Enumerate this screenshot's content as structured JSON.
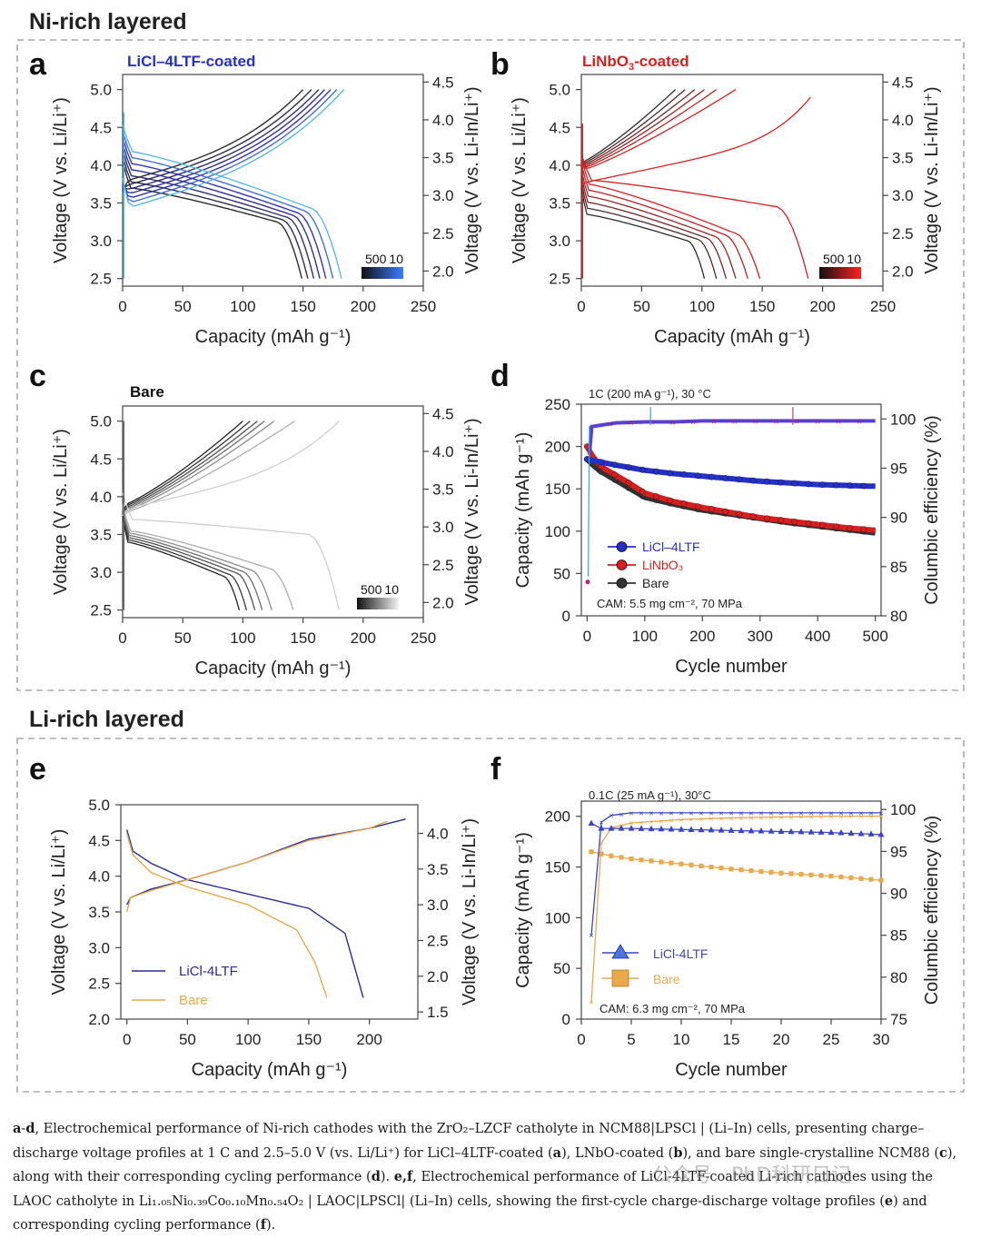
{
  "sections": [
    {
      "title": "Ni-rich layered"
    },
    {
      "title": "Li-rich layered"
    }
  ],
  "colors": {
    "licl": "#2430c8",
    "licl_light": "#58b8e6",
    "linbo": "#d81f1f",
    "bare": "#333333",
    "orange": "#e8a84c",
    "navy": "#2a2a9a"
  },
  "panels": {
    "a": {
      "letter": "a",
      "label": "LiCl–4LTF-coated",
      "colorbar": {
        "left": "500",
        "right": "10"
      }
    },
    "b": {
      "letter": "b",
      "label_main": "LiNbO",
      "label_sub": "3",
      "label_tail": "-coated",
      "colorbar": {
        "left": "500",
        "right": "10"
      }
    },
    "c": {
      "letter": "c",
      "label": "Bare",
      "colorbar": {
        "left": "500",
        "right": "10"
      }
    },
    "d": {
      "letter": "d",
      "condition": "1C (200 mA g⁻¹), 30 °C",
      "cam": "CAM: 5.5 mg cm⁻², 70 MPa",
      "legend": [
        "LiCl–4LTF",
        "LiNbO₃",
        "Bare"
      ]
    },
    "e": {
      "letter": "e",
      "legend": [
        "LiCl-4LTF",
        "Bare"
      ]
    },
    "f": {
      "letter": "f",
      "condition": "0.1C (25 mA g⁻¹), 30°C",
      "cam": "CAM: 6.3 mg cm⁻², 70 MPa",
      "legend": [
        "LiCl-4LTF",
        "Bare"
      ]
    }
  },
  "axes": {
    "voltage_li": "Voltage (V vs. Li/Li⁺)",
    "voltage_liin": "Voltage (V vs. Li-In/Li⁺)",
    "capacity_x": "Capacity (mAh g⁻¹)",
    "capacity_y": "Capacity (mAh g⁻¹)",
    "cycle": "Cycle number",
    "ce": "Columbic efficiency (%)"
  },
  "chart_data": [
    {
      "id": "a",
      "type": "line",
      "title": "LiCl–4LTF-coated",
      "xlabel": "Capacity (mAh g⁻¹)",
      "ylabel": "Voltage (V vs. Li/Li⁺)",
      "y2label": "Voltage (V vs. Li-In/Li⁺)",
      "xlim": [
        0,
        250
      ],
      "ylim": [
        2.4,
        5.2
      ],
      "y2lim": [
        1.8,
        4.6
      ],
      "xticks": [
        0,
        50,
        100,
        150,
        200,
        250
      ],
      "yticks": [
        2.5,
        3.0,
        3.5,
        4.0,
        4.5,
        5.0
      ],
      "y2ticks": [
        2.0,
        2.5,
        3.0,
        3.5,
        4.0,
        4.5
      ],
      "curve_count": 7,
      "charge_end_capacity": [
        150,
        157,
        163,
        168,
        173,
        178,
        184
      ],
      "discharge_end_capacity": [
        149,
        154,
        159,
        164,
        169,
        175,
        182
      ],
      "colorbar": [
        "500",
        "10"
      ]
    },
    {
      "id": "b",
      "type": "line",
      "title": "LiNbO₃-coated",
      "xlabel": "Capacity (mAh g⁻¹)",
      "ylabel": "Voltage (V vs. Li/Li⁺)",
      "y2label": "Voltage (V vs. Li-In/Li⁺)",
      "xlim": [
        0,
        250
      ],
      "ylim": [
        2.4,
        5.2
      ],
      "y2lim": [
        1.8,
        4.6
      ],
      "xticks": [
        0,
        50,
        100,
        150,
        200,
        250
      ],
      "yticks": [
        2.5,
        3.0,
        3.5,
        4.0,
        4.5,
        5.0
      ],
      "y2ticks": [
        2.0,
        2.5,
        3.0,
        3.5,
        4.0,
        4.5
      ],
      "curve_count": 7,
      "charge_end_capacity": [
        78,
        86,
        94,
        102,
        112,
        128,
        190
      ],
      "discharge_end_capacity": [
        102,
        112,
        120,
        128,
        138,
        148,
        188
      ],
      "colorbar": [
        "500",
        "10"
      ]
    },
    {
      "id": "c",
      "type": "line",
      "title": "Bare",
      "xlabel": "Capacity (mAh g⁻¹)",
      "ylabel": "Voltage (V vs. Li/Li⁺)",
      "y2label": "Voltage (V vs. Li-In/Li⁺)",
      "xlim": [
        0,
        250
      ],
      "ylim": [
        2.4,
        5.2
      ],
      "y2lim": [
        1.8,
        4.6
      ],
      "xticks": [
        0,
        50,
        100,
        150,
        200,
        250
      ],
      "yticks": [
        2.5,
        3.0,
        3.5,
        4.0,
        4.5,
        5.0
      ],
      "y2ticks": [
        2.0,
        2.5,
        3.0,
        3.5,
        4.0,
        4.5
      ],
      "curve_count": 7,
      "charge_end_capacity": [
        100,
        106,
        112,
        118,
        126,
        143,
        180
      ],
      "discharge_end_capacity": [
        97,
        103,
        110,
        116,
        124,
        142,
        180
      ],
      "colorbar": [
        "500",
        "10"
      ]
    },
    {
      "id": "d",
      "type": "scatter",
      "xlabel": "Cycle number",
      "ylabel": "Capacity (mAh g⁻¹)",
      "y2label": "Columbic efficiency (%)",
      "xlim": [
        -10,
        510
      ],
      "ylim": [
        0,
        250
      ],
      "y2lim": [
        80,
        101.5
      ],
      "xticks": [
        0,
        100,
        200,
        300,
        400,
        500
      ],
      "yticks": [
        0,
        50,
        100,
        150,
        200,
        250
      ],
      "y2ticks": [
        80,
        85,
        90,
        95,
        100
      ],
      "series": [
        {
          "name": "LiCl–4LTF",
          "x": [
            0,
            50,
            100,
            150,
            200,
            250,
            300,
            350,
            400,
            450,
            500
          ],
          "y": [
            185,
            178,
            172,
            168,
            165,
            162,
            159,
            157,
            155,
            154,
            153
          ]
        },
        {
          "name": "LiNbO₃",
          "x": [
            0,
            10,
            25,
            50,
            75,
            100,
            150,
            200,
            250,
            300,
            350,
            400,
            450,
            500
          ],
          "y": [
            200,
            188,
            176,
            166,
            156,
            145,
            135,
            128,
            122,
            116,
            112,
            108,
            104,
            101
          ]
        },
        {
          "name": "Bare",
          "x": [
            0,
            10,
            25,
            50,
            75,
            100,
            150,
            200,
            250,
            300,
            350,
            400,
            450,
            500
          ],
          "y": [
            185,
            178,
            170,
            160,
            150,
            140,
            132,
            125,
            120,
            115,
            110,
            106,
            102,
            98
          ]
        },
        {
          "name": "CE",
          "x": [
            0,
            5,
            50,
            100,
            150,
            200,
            250,
            300,
            350,
            400,
            450,
            500
          ],
          "y": [
            85,
            99.2,
            99.6,
            99.7,
            99.7,
            99.8,
            99.8,
            99.8,
            99.8,
            99.8,
            99.8,
            99.8
          ]
        }
      ]
    },
    {
      "id": "e",
      "type": "line",
      "xlabel": "Capacity (mAh g⁻¹)",
      "ylabel": "Voltage (V vs. Li/Li⁺)",
      "y2label": "Voltage (V vs. Li-In/Li⁺)",
      "xlim": [
        -5,
        240
      ],
      "ylim": [
        2.0,
        5.0
      ],
      "y2lim": [
        1.4,
        4.4
      ],
      "xticks": [
        0,
        50,
        100,
        150,
        200
      ],
      "yticks": [
        2.0,
        2.5,
        3.0,
        3.5,
        4.0,
        4.5,
        5.0
      ],
      "y2ticks": [
        1.5,
        2.0,
        2.5,
        3.0,
        3.5,
        4.0
      ],
      "series": [
        {
          "name": "LiCl-4LTF charge",
          "x": [
            0,
            3,
            20,
            50,
            100,
            150,
            200,
            230
          ],
          "y": [
            3.6,
            3.7,
            3.82,
            3.95,
            4.2,
            4.52,
            4.67,
            4.8
          ]
        },
        {
          "name": "LiCl-4LTF discharge",
          "x": [
            0,
            5,
            20,
            50,
            100,
            150,
            180,
            195
          ],
          "y": [
            4.65,
            4.35,
            4.18,
            3.95,
            3.75,
            3.55,
            3.2,
            2.3
          ]
        },
        {
          "name": "Bare charge",
          "x": [
            0,
            3,
            20,
            50,
            100,
            150,
            200,
            215
          ],
          "y": [
            3.5,
            3.7,
            3.8,
            3.95,
            4.2,
            4.5,
            4.67,
            4.77
          ]
        },
        {
          "name": "Bare discharge",
          "x": [
            0,
            5,
            20,
            50,
            100,
            140,
            155,
            165
          ],
          "y": [
            4.6,
            4.3,
            4.05,
            3.85,
            3.6,
            3.25,
            2.8,
            2.3
          ]
        }
      ]
    },
    {
      "id": "f",
      "type": "scatter",
      "xlabel": "Cycle number",
      "ylabel": "Capacity (mAh g⁻¹)",
      "y2label": "Columbic efficiency (%)",
      "xlim": [
        0,
        30
      ],
      "ylim": [
        0,
        215
      ],
      "y2lim": [
        75,
        101
      ],
      "xticks": [
        0,
        5,
        10,
        15,
        20,
        25,
        30
      ],
      "yticks": [
        0,
        50,
        100,
        150,
        200
      ],
      "y2ticks": [
        75,
        80,
        85,
        90,
        95,
        100
      ],
      "series": [
        {
          "name": "LiCl-4LTF",
          "x": [
            1,
            2,
            3,
            5,
            10,
            15,
            20,
            25,
            30
          ],
          "y": [
            193,
            188,
            188,
            188,
            187,
            186,
            185,
            184,
            182
          ]
        },
        {
          "name": "Bare",
          "x": [
            1,
            2,
            3,
            5,
            10,
            15,
            20,
            25,
            30
          ],
          "y": [
            165,
            163,
            161,
            158,
            153,
            148,
            144,
            141,
            137
          ]
        },
        {
          "name": "LiCl-4LTF CE",
          "x": [
            1,
            2,
            3,
            5,
            10,
            15,
            20,
            25,
            30
          ],
          "y": [
            85,
            98.5,
            99.3,
            99.6,
            99.6,
            99.6,
            99.6,
            99.6,
            99.6
          ]
        },
        {
          "name": "Bare CE",
          "x": [
            1,
            2,
            3,
            5,
            10,
            15,
            20,
            25,
            30
          ],
          "y": [
            77,
            96,
            97.8,
            98.4,
            98.8,
            99.0,
            99.1,
            99.2,
            99.2
          ]
        }
      ]
    }
  ],
  "caption": {
    "ad_bold": "a",
    "ad_dash": "-",
    "ad_bold2": "d",
    "line1": ", Electrochemical performance of Ni-rich cathodes with the ZrO₂–LZCF catholyte in NCM88|LPSCl | (Li–In) cells, presenting charge–discharge voltage profiles at 1 C and 2.5–5.0 V (vs. Li/Li⁺) for LiCl–4LTF-coated (",
    "a": "a",
    "mid1": "), LNbO-coated (",
    "b": "b",
    "mid2": "), and bare single-crystalline NCM88 (",
    "c": "c",
    "mid3": "), along with their corresponding cycling performance (",
    "d": "d",
    "mid4": "). ",
    "ef": "e,f",
    "line2": ", Electrochemical performance of LiCl-4LTF-coated Li-rich cathodes using the LAOC catholyte in Li₁.₀₅Ni₀.₃₉Co₀.₁₀Mn₀.₅₄O₂ | LAOC|LPSCl| (Li–In) cells, showing the first-cycle charge-discharge voltage profiles (",
    "e": "e",
    "mid5": ") and corresponding cycling performance (",
    "f": "f",
    "end": ")."
  },
  "watermark": "公众号 · PhD科研日记"
}
